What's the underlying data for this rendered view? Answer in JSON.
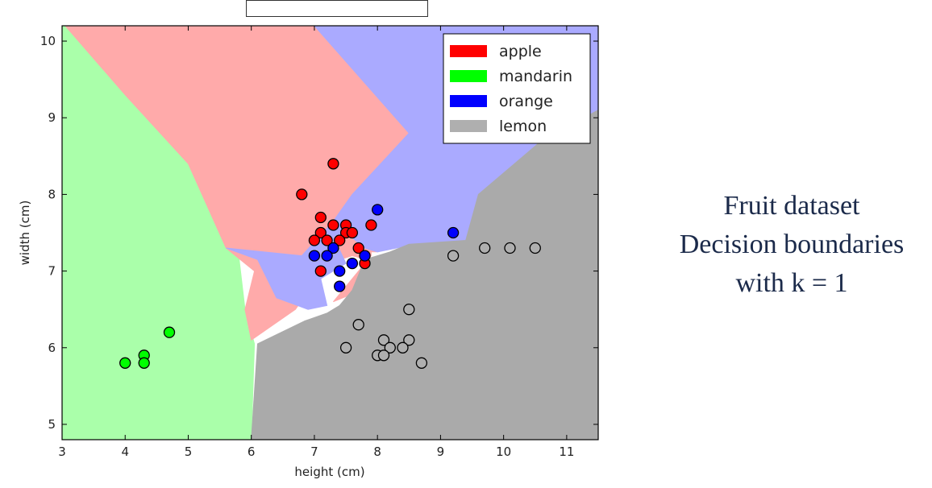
{
  "caption": {
    "line1": "Fruit dataset",
    "line2": "Decision boundaries",
    "line3": "with k = 1"
  },
  "chart_data": {
    "type": "scatter",
    "title": "",
    "xlabel": "height (cm)",
    "ylabel": "width (cm)",
    "xlim": [
      3,
      11.5
    ],
    "ylim": [
      4.8,
      10.2
    ],
    "xticks": [
      "3",
      "4",
      "5",
      "6",
      "7",
      "8",
      "9",
      "10",
      "11"
    ],
    "yticks": [
      "5",
      "6",
      "7",
      "8",
      "9",
      "10"
    ],
    "grid": false,
    "legend_position": "top-right",
    "colors": {
      "apple": "#ff0000",
      "mandarin": "#00ff00",
      "orange": "#0000ff",
      "lemon": "#afafaf",
      "region_apple": "#ffaaaa",
      "region_mandarin": "#aaffaa",
      "region_orange": "#aaaaff",
      "region_lemon": "#aaaaaa"
    },
    "series": [
      {
        "name": "apple",
        "points": [
          [
            7.3,
            8.4
          ],
          [
            6.8,
            8.0
          ],
          [
            7.1,
            7.7
          ],
          [
            7.3,
            7.6
          ],
          [
            7.5,
            7.6
          ],
          [
            7.9,
            7.6
          ],
          [
            7.1,
            7.5
          ],
          [
            7.5,
            7.5
          ],
          [
            7.6,
            7.5
          ],
          [
            7.0,
            7.4
          ],
          [
            7.2,
            7.4
          ],
          [
            7.4,
            7.4
          ],
          [
            7.7,
            7.3
          ],
          [
            7.8,
            7.1
          ],
          [
            7.1,
            7.0
          ]
        ]
      },
      {
        "name": "mandarin",
        "points": [
          [
            4.7,
            6.2
          ],
          [
            4.3,
            5.9
          ],
          [
            4.0,
            5.8
          ],
          [
            4.3,
            5.8
          ]
        ]
      },
      {
        "name": "orange",
        "points": [
          [
            8.0,
            7.8
          ],
          [
            9.2,
            7.5
          ],
          [
            7.3,
            7.3
          ],
          [
            7.0,
            7.2
          ],
          [
            7.2,
            7.2
          ],
          [
            7.8,
            7.2
          ],
          [
            7.6,
            7.1
          ],
          [
            7.4,
            7.0
          ],
          [
            7.4,
            6.8
          ]
        ]
      },
      {
        "name": "lemon",
        "points": [
          [
            9.7,
            7.3
          ],
          [
            10.1,
            7.3
          ],
          [
            10.5,
            7.3
          ],
          [
            9.2,
            7.2
          ],
          [
            8.5,
            6.5
          ],
          [
            7.7,
            6.3
          ],
          [
            8.1,
            6.1
          ],
          [
            8.5,
            6.1
          ],
          [
            7.5,
            6.0
          ],
          [
            8.2,
            6.0
          ],
          [
            8.4,
            6.0
          ],
          [
            8.0,
            5.9
          ],
          [
            8.1,
            5.9
          ],
          [
            8.7,
            5.8
          ]
        ]
      }
    ],
    "regions": [
      {
        "name": "mandarin",
        "polygon": [
          [
            3.0,
            4.8
          ],
          [
            3.0,
            10.2
          ],
          [
            3.05,
            10.2
          ],
          [
            4.0,
            9.3
          ],
          [
            5.0,
            8.4
          ],
          [
            5.6,
            7.3
          ],
          [
            5.8,
            7.2
          ],
          [
            5.9,
            6.5
          ],
          [
            6.05,
            6.05
          ],
          [
            6.0,
            4.8
          ]
        ]
      },
      {
        "name": "apple",
        "polygon": [
          [
            3.05,
            10.2
          ],
          [
            7.0,
            10.2
          ],
          [
            8.5,
            8.8
          ],
          [
            7.6,
            8.0
          ],
          [
            7.6,
            7.6
          ],
          [
            8.5,
            7.35
          ],
          [
            8.0,
            7.25
          ],
          [
            7.9,
            7.25
          ],
          [
            7.9,
            7.2
          ],
          [
            7.3,
            6.6
          ],
          [
            7.6,
            6.7
          ],
          [
            8.1,
            7.1
          ],
          [
            7.6,
            7.2
          ],
          [
            7.2,
            7.1
          ],
          [
            6.7,
            6.5
          ],
          [
            6.0,
            6.1
          ],
          [
            5.9,
            6.5
          ],
          [
            6.05,
            7.0
          ],
          [
            5.6,
            7.3
          ],
          [
            5.0,
            8.4
          ],
          [
            4.0,
            9.3
          ]
        ]
      },
      {
        "name": "orange",
        "polygon": [
          [
            7.0,
            10.2
          ],
          [
            11.5,
            10.2
          ],
          [
            11.5,
            9.1
          ],
          [
            10.6,
            8.7
          ],
          [
            9.6,
            8.0
          ],
          [
            9.4,
            7.4
          ],
          [
            8.6,
            7.35
          ],
          [
            8.0,
            7.25
          ],
          [
            7.8,
            7.3
          ],
          [
            7.5,
            7.5
          ],
          [
            7.3,
            7.45
          ],
          [
            7.5,
            7.1
          ],
          [
            7.1,
            6.9
          ],
          [
            7.2,
            6.55
          ],
          [
            6.9,
            6.5
          ],
          [
            6.4,
            6.65
          ],
          [
            6.1,
            7.15
          ],
          [
            5.6,
            7.3
          ],
          [
            6.8,
            7.2
          ],
          [
            7.3,
            7.65
          ],
          [
            7.6,
            8.0
          ],
          [
            8.5,
            8.8
          ]
        ]
      },
      {
        "name": "lemon",
        "polygon": [
          [
            6.0,
            4.8
          ],
          [
            11.5,
            4.8
          ],
          [
            11.5,
            9.1
          ],
          [
            10.6,
            8.7
          ],
          [
            9.6,
            8.0
          ],
          [
            9.4,
            7.4
          ],
          [
            8.5,
            7.35
          ],
          [
            8.2,
            7.25
          ],
          [
            8.0,
            7.2
          ],
          [
            7.8,
            7.15
          ],
          [
            7.6,
            6.75
          ],
          [
            7.4,
            6.55
          ],
          [
            7.2,
            6.45
          ],
          [
            6.85,
            6.35
          ],
          [
            6.1,
            6.05
          ]
        ]
      }
    ]
  }
}
